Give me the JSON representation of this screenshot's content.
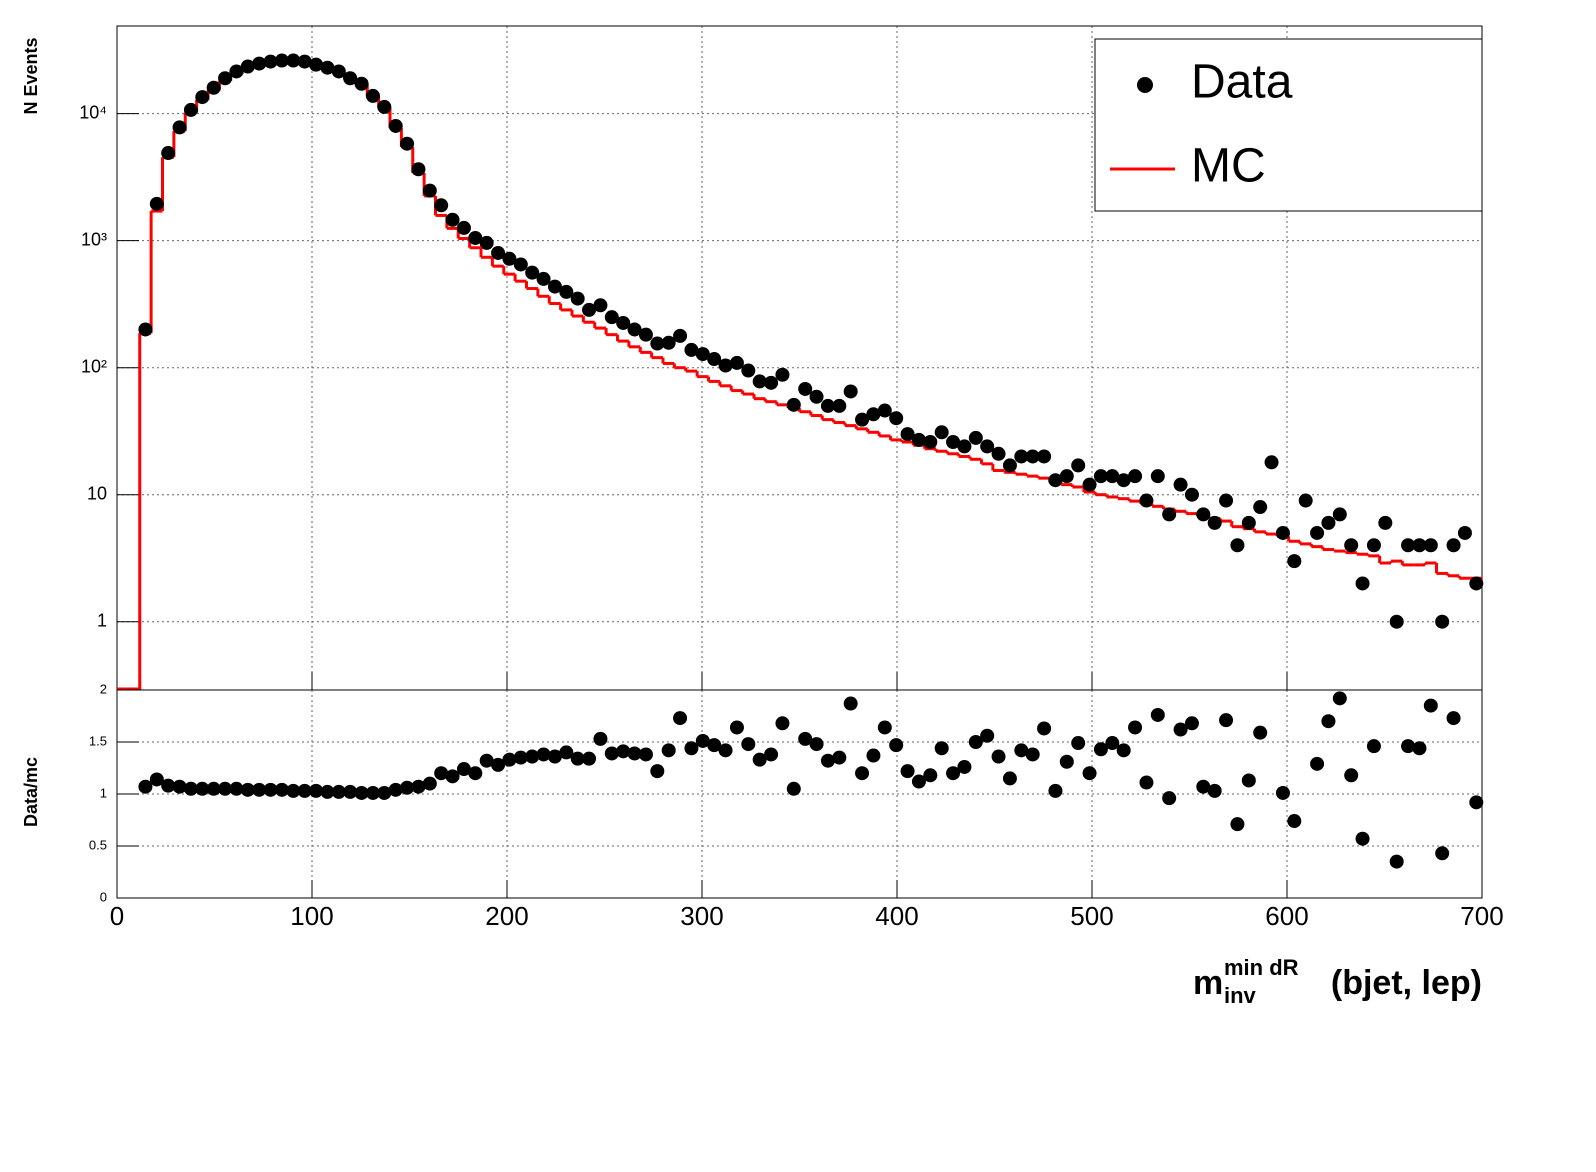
{
  "chart_data": [
    {
      "type": "line",
      "y_label": "N Events",
      "x": [
        14.58,
        20.42,
        26.25,
        32.08,
        37.92,
        43.75,
        49.58,
        55.42,
        61.25,
        67.08,
        72.92,
        78.75,
        84.58,
        90.42,
        96.25,
        102.08,
        107.92,
        113.75,
        119.58,
        125.42,
        131.25,
        137.08,
        142.92,
        148.75,
        154.58,
        160.42,
        166.25,
        172.08,
        177.92,
        183.75,
        189.58,
        195.42,
        201.25,
        207.08,
        212.92,
        218.75,
        224.58,
        230.42,
        236.25,
        242.08,
        247.92,
        253.75,
        259.58,
        265.42,
        271.25,
        277.08,
        282.92,
        288.75,
        294.58,
        300.42,
        306.25,
        312.08,
        317.92,
        323.75,
        329.58,
        335.42,
        341.25,
        347.08,
        352.92,
        358.75,
        364.58,
        370.42,
        376.25,
        382.08,
        387.92,
        393.75,
        399.58,
        405.42,
        411.25,
        417.08,
        422.92,
        428.75,
        434.58,
        440.42,
        446.25,
        452.08,
        457.92,
        463.75,
        469.58,
        475.42,
        481.25,
        487.08,
        492.92,
        498.75,
        504.58,
        510.42,
        516.25,
        522.08,
        527.92,
        533.75,
        539.58,
        545.42,
        551.25,
        557.08,
        562.92,
        568.75,
        574.58,
        580.42,
        586.25,
        592.08,
        597.92,
        603.75,
        609.58,
        615.42,
        621.25,
        627.08,
        632.92,
        638.75,
        644.58,
        650.42,
        656.25,
        662.08,
        667.92,
        673.75,
        679.58,
        685.42,
        691.25,
        697.08
      ],
      "series": [
        {
          "name": "Data",
          "color": "#000000",
          "style": "markers",
          "values": [
            200,
            1950,
            4900,
            7800,
            10700,
            13500,
            16000,
            19000,
            21500,
            23500,
            24800,
            25700,
            26200,
            26200,
            25700,
            24300,
            23000,
            21500,
            19000,
            17200,
            13800,
            11300,
            8000,
            5800,
            3650,
            2480,
            1900,
            1460,
            1260,
            1050,
            960,
            800,
            720,
            650,
            560,
            500,
            435,
            395,
            350,
            285,
            310,
            250,
            225,
            200,
            182,
            155,
            157,
            178,
            138,
            128,
            117,
            104,
            109,
            95,
            78,
            76,
            88,
            51,
            68,
            59,
            50,
            50,
            65,
            39,
            43,
            46,
            40,
            30,
            27,
            26,
            31,
            26,
            24,
            28,
            24,
            21,
            17,
            20,
            20,
            20,
            13,
            14,
            17,
            12,
            14,
            14,
            13,
            14,
            9,
            14,
            7,
            12,
            10,
            7,
            6,
            9,
            4,
            6,
            8,
            18,
            5,
            3,
            9,
            5,
            6,
            7,
            4,
            2,
            4,
            6,
            1,
            4,
            4,
            4,
            1,
            4,
            5,
            2
          ]
        },
        {
          "name": "MC",
          "color": "#ff0000",
          "style": "step",
          "values": [
            187,
            1710,
            4540,
            7290,
            10190,
            12860,
            15240,
            18100,
            20480,
            22600,
            23850,
            24710,
            25190,
            25440,
            24950,
            23590,
            22550,
            21080,
            18630,
            17030,
            13660,
            11190,
            7690,
            5470,
            3410,
            2250,
            1580,
            1250,
            1040,
            880,
            740,
            630,
            545,
            480,
            420,
            365,
            320,
            285,
            255,
            228,
            205,
            182,
            162,
            146,
            132,
            120,
            108,
            100,
            94,
            85,
            78,
            72,
            66,
            62,
            57,
            54,
            51,
            48,
            45,
            42,
            39,
            37,
            35,
            33,
            31,
            29,
            27,
            26,
            24.5,
            23,
            22,
            21,
            20,
            19,
            17.5,
            15.5,
            15,
            14.5,
            14,
            13.5,
            12.5,
            12,
            11.5,
            10.5,
            10,
            9.6,
            9.3,
            8.9,
            8.5,
            8.1,
            7.7,
            7.4,
            7.1,
            6.8,
            6.5,
            6.2,
            5.6,
            5.4,
            5.1,
            4.9,
            4.7,
            4.3,
            4.1,
            3.9,
            3.7,
            3.6,
            3.5,
            3.4,
            3.3,
            2.9,
            3.0,
            2.8,
            2.8,
            2.9,
            2.4,
            2.3,
            2.2,
            2.2
          ]
        }
      ],
      "xlim": [
        0,
        700
      ],
      "xticks": [
        0,
        100,
        200,
        300,
        400,
        500,
        600,
        700
      ],
      "ylim": [
        0.29,
        49000
      ],
      "log_y": true,
      "yticks": [
        1,
        10,
        {
          "value": 100,
          "label": "10²"
        },
        {
          "value": 1000,
          "label": "10³"
        },
        {
          "value": 10000,
          "label": "10⁴"
        }
      ],
      "grid": true,
      "legend": "top-right"
    },
    {
      "type": "scatter",
      "y_label": "Data/mc",
      "x_label": {
        "base": "m",
        "sub": "inv",
        "sup": "min dR",
        "rest": "(bjet, lep)"
      },
      "x": [
        14.58,
        20.42,
        26.25,
        32.08,
        37.92,
        43.75,
        49.58,
        55.42,
        61.25,
        67.08,
        72.92,
        78.75,
        84.58,
        90.42,
        96.25,
        102.08,
        107.92,
        113.75,
        119.58,
        125.42,
        131.25,
        137.08,
        142.92,
        148.75,
        154.58,
        160.42,
        166.25,
        172.08,
        177.92,
        183.75,
        189.58,
        195.42,
        201.25,
        207.08,
        212.92,
        218.75,
        224.58,
        230.42,
        236.25,
        242.08,
        247.92,
        253.75,
        259.58,
        265.42,
        271.25,
        277.08,
        282.92,
        288.75,
        294.58,
        300.42,
        306.25,
        312.08,
        317.92,
        323.75,
        329.58,
        335.42,
        341.25,
        347.08,
        352.92,
        358.75,
        364.58,
        370.42,
        376.25,
        382.08,
        387.92,
        393.75,
        399.58,
        405.42,
        411.25,
        417.08,
        422.92,
        428.75,
        434.58,
        440.42,
        446.25,
        452.08,
        457.92,
        463.75,
        469.58,
        475.42,
        481.25,
        487.08,
        492.92,
        498.75,
        504.58,
        510.42,
        516.25,
        522.08,
        527.92,
        533.75,
        539.58,
        545.42,
        551.25,
        557.08,
        562.92,
        568.75,
        574.58,
        580.42,
        586.25,
        592.08,
        597.92,
        603.75,
        609.58,
        615.42,
        621.25,
        627.08,
        632.92,
        638.75,
        644.58,
        650.42,
        656.25,
        662.08,
        667.92,
        673.75,
        679.58,
        685.42,
        691.25,
        697.08
      ],
      "color": "#000000",
      "values": [
        1.07,
        1.14,
        1.08,
        1.07,
        1.05,
        1.05,
        1.05,
        1.05,
        1.05,
        1.04,
        1.04,
        1.04,
        1.04,
        1.03,
        1.03,
        1.03,
        1.02,
        1.02,
        1.02,
        1.01,
        1.01,
        1.01,
        1.04,
        1.06,
        1.07,
        1.1,
        1.2,
        1.17,
        1.24,
        1.2,
        1.32,
        1.28,
        1.33,
        1.35,
        1.36,
        1.38,
        1.36,
        1.4,
        1.34,
        1.34,
        1.53,
        1.39,
        1.41,
        1.39,
        1.38,
        1.22,
        1.42,
        1.73,
        1.44,
        1.51,
        1.47,
        1.42,
        1.64,
        1.48,
        1.33,
        1.38,
        1.68,
        1.05,
        1.53,
        1.48,
        1.32,
        1.35,
        1.87,
        1.2,
        1.37,
        1.64,
        1.47,
        1.22,
        1.12,
        1.18,
        1.44,
        1.2,
        1.26,
        1.5,
        1.56,
        1.36,
        1.15,
        1.42,
        1.38,
        1.63,
        1.03,
        1.31,
        1.49,
        1.2,
        1.43,
        1.49,
        1.42,
        1.64,
        1.11,
        1.76,
        0.96,
        1.62,
        1.68,
        1.07,
        1.03,
        1.71,
        0.71,
        1.13,
        1.59,
        null,
        1.01,
        0.74,
        null,
        1.29,
        1.7,
        1.92,
        1.18,
        0.57,
        1.46,
        null,
        0.35,
        1.46,
        1.44,
        1.85,
        0.43,
        1.73,
        null,
        0.92
      ],
      "xlim": [
        0,
        700
      ],
      "xticks": [
        0,
        100,
        200,
        300,
        400,
        500,
        600,
        700
      ],
      "ylim": [
        0,
        2
      ],
      "yticks": [
        0,
        0.5,
        1,
        1.5,
        2
      ],
      "grid": true
    }
  ]
}
